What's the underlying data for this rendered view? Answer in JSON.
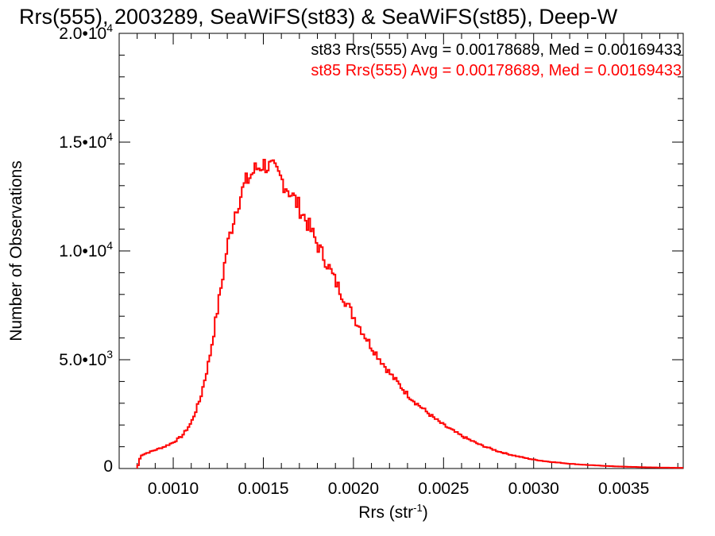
{
  "chart_data": {
    "type": "step",
    "title": "Rrs(555), 2003289, SeaWiFS(st83) & SeaWiFS(st85), Deep-W",
    "xlabel": "Rrs (str",
    "xlabel_sup": "-1",
    "xlabel_end": ")",
    "ylabel": "Number of Observations",
    "xlim": [
      0.0007,
      0.00383
    ],
    "ylim": [
      0,
      20000
    ],
    "x_ticks": [
      {
        "value": 0.001,
        "label": "0.0010"
      },
      {
        "value": 0.0015,
        "label": "0.0015"
      },
      {
        "value": 0.002,
        "label": "0.0020"
      },
      {
        "value": 0.0025,
        "label": "0.0025"
      },
      {
        "value": 0.003,
        "label": "0.0030"
      },
      {
        "value": 0.0035,
        "label": "0.0035"
      }
    ],
    "y_ticks": [
      {
        "value": 0,
        "mant": "0",
        "exp": ""
      },
      {
        "value": 5000,
        "mant": "5.0•10",
        "exp": "3"
      },
      {
        "value": 10000,
        "mant": "1.0•10",
        "exp": "4"
      },
      {
        "value": 15000,
        "mant": "1.5•10",
        "exp": "4"
      },
      {
        "value": 20000,
        "mant": "2.0•10",
        "exp": "4"
      }
    ],
    "annotations": [
      {
        "text": "st83 Rrs(555) Avg = 0.00178689, Med = 0.00169433",
        "color": "#000000"
      },
      {
        "text": "st85 Rrs(555) Avg = 0.00178689, Med = 0.00169433",
        "color": "#ff0000"
      }
    ],
    "series": [
      {
        "name": "st85",
        "color": "#ff0000",
        "points": [
          [
            0.0008,
            0
          ],
          [
            0.00082,
            600
          ],
          [
            0.00085,
            700
          ],
          [
            0.0009,
            850
          ],
          [
            0.00095,
            1000
          ],
          [
            0.001,
            1200
          ],
          [
            0.00105,
            1500
          ],
          [
            0.0011,
            2100
          ],
          [
            0.00115,
            3200
          ],
          [
            0.0012,
            5000
          ],
          [
            0.00125,
            7500
          ],
          [
            0.0013,
            10200
          ],
          [
            0.00135,
            12000
          ],
          [
            0.0014,
            13100
          ],
          [
            0.00145,
            13700
          ],
          [
            0.0015,
            14000
          ],
          [
            0.00155,
            13800
          ],
          [
            0.0016,
            13300
          ],
          [
            0.00165,
            12700
          ],
          [
            0.0017,
            12000
          ],
          [
            0.00175,
            11200
          ],
          [
            0.0018,
            10300
          ],
          [
            0.00185,
            9500
          ],
          [
            0.0019,
            8600
          ],
          [
            0.00195,
            7800
          ],
          [
            0.002,
            7000
          ],
          [
            0.00205,
            6300
          ],
          [
            0.0021,
            5600
          ],
          [
            0.00215,
            5000
          ],
          [
            0.0022,
            4400
          ],
          [
            0.00225,
            3900
          ],
          [
            0.0023,
            3400
          ],
          [
            0.00235,
            3000
          ],
          [
            0.0024,
            2650
          ],
          [
            0.00245,
            2300
          ],
          [
            0.0025,
            2000
          ],
          [
            0.00255,
            1750
          ],
          [
            0.0026,
            1500
          ],
          [
            0.00265,
            1300
          ],
          [
            0.0027,
            1100
          ],
          [
            0.00275,
            950
          ],
          [
            0.0028,
            800
          ],
          [
            0.00285,
            680
          ],
          [
            0.0029,
            580
          ],
          [
            0.00295,
            490
          ],
          [
            0.003,
            410
          ],
          [
            0.00305,
            350
          ],
          [
            0.0031,
            300
          ],
          [
            0.00315,
            260
          ],
          [
            0.0032,
            220
          ],
          [
            0.00325,
            190
          ],
          [
            0.0033,
            160
          ],
          [
            0.00335,
            140
          ],
          [
            0.0034,
            120
          ],
          [
            0.00345,
            100
          ],
          [
            0.0035,
            85
          ],
          [
            0.00355,
            72
          ],
          [
            0.0036,
            62
          ],
          [
            0.00365,
            52
          ],
          [
            0.0037,
            44
          ],
          [
            0.00375,
            38
          ],
          [
            0.0038,
            32
          ],
          [
            0.00383,
            30
          ]
        ]
      }
    ]
  }
}
